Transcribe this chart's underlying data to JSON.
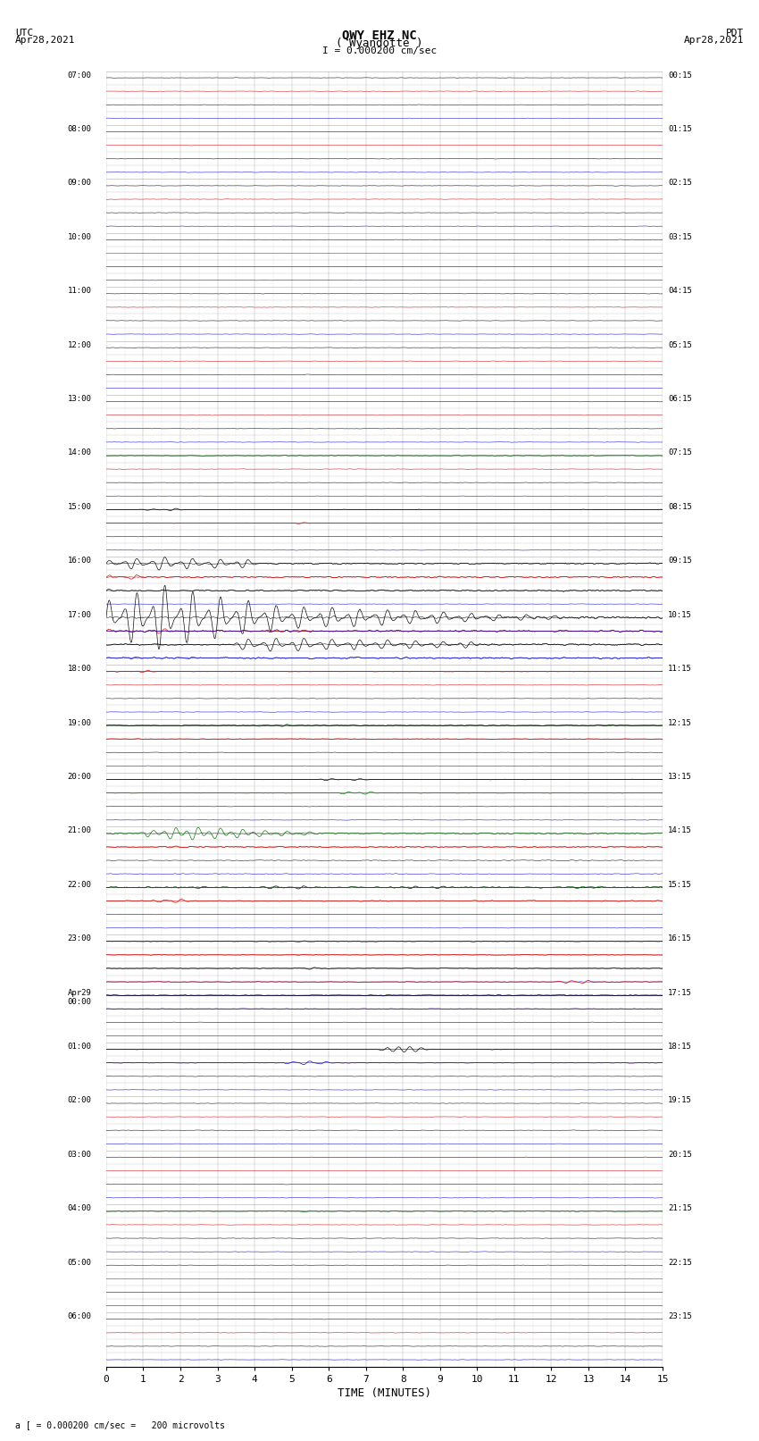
{
  "title_line1": "QWY EHZ NC",
  "title_line2": "( Wyandotte )",
  "scale_label": "I = 0.000200 cm/sec",
  "left_label_line1": "UTC",
  "left_label_line2": "Apr28,2021",
  "right_label_line1": "PDT",
  "right_label_line2": "Apr28,2021",
  "bottom_label": "a [ = 0.000200 cm/sec =   200 microvolts",
  "xlabel": "TIME (MINUTES)",
  "utc_times": [
    "07:00",
    "",
    "",
    "",
    "08:00",
    "",
    "",
    "",
    "09:00",
    "",
    "",
    "",
    "10:00",
    "",
    "",
    "",
    "11:00",
    "",
    "",
    "",
    "12:00",
    "",
    "",
    "",
    "13:00",
    "",
    "",
    "",
    "14:00",
    "",
    "",
    "",
    "15:00",
    "",
    "",
    "",
    "16:00",
    "",
    "",
    "",
    "17:00",
    "",
    "",
    "",
    "18:00",
    "",
    "",
    "",
    "19:00",
    "",
    "",
    "",
    "20:00",
    "",
    "",
    "",
    "21:00",
    "",
    "",
    "",
    "22:00",
    "",
    "",
    "",
    "23:00",
    "",
    "",
    "",
    "Apr29\n00:00",
    "",
    "",
    "",
    "01:00",
    "",
    "",
    "",
    "02:00",
    "",
    "",
    "",
    "03:00",
    "",
    "",
    "",
    "04:00",
    "",
    "",
    "",
    "05:00",
    "",
    "",
    "",
    "06:00",
    "",
    "",
    ""
  ],
  "pdt_times": [
    "00:15",
    "",
    "",
    "",
    "01:15",
    "",
    "",
    "",
    "02:15",
    "",
    "",
    "",
    "03:15",
    "",
    "",
    "",
    "04:15",
    "",
    "",
    "",
    "05:15",
    "",
    "",
    "",
    "06:15",
    "",
    "",
    "",
    "07:15",
    "",
    "",
    "",
    "08:15",
    "",
    "",
    "",
    "09:15",
    "",
    "",
    "",
    "10:15",
    "",
    "",
    "",
    "11:15",
    "",
    "",
    "",
    "12:15",
    "",
    "",
    "",
    "13:15",
    "",
    "",
    "",
    "14:15",
    "",
    "",
    "",
    "15:15",
    "",
    "",
    "",
    "16:15",
    "",
    "",
    "",
    "17:15",
    "",
    "",
    "",
    "18:15",
    "",
    "",
    "",
    "19:15",
    "",
    "",
    "",
    "20:15",
    "",
    "",
    "",
    "21:15",
    "",
    "",
    "",
    "22:15",
    "",
    "",
    "",
    "23:15",
    "",
    "",
    ""
  ],
  "n_rows": 96,
  "bg_color": "#ffffff",
  "trace_color_black": "#000000",
  "trace_color_red": "#cc0000",
  "trace_color_blue": "#0000cc",
  "trace_color_green": "#007700",
  "grid_color": "#888888",
  "text_color": "#000000",
  "figsize": [
    8.5,
    16.13
  ],
  "dpi": 100
}
